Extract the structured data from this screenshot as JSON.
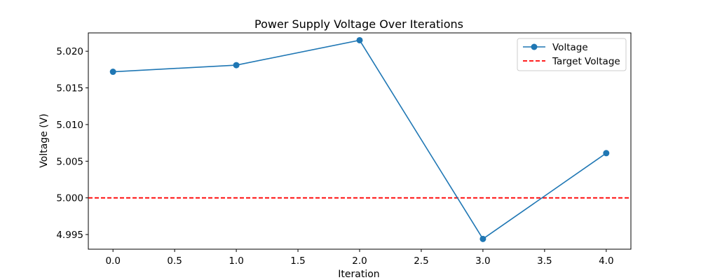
{
  "chart_data": {
    "type": "line",
    "title": "Power Supply Voltage Over Iterations",
    "xlabel": "Iteration",
    "ylabel": "Voltage (V)",
    "xlim": [
      -0.2,
      4.2
    ],
    "ylim": [
      4.993,
      5.0225
    ],
    "x_ticks": [
      0.0,
      0.5,
      1.0,
      1.5,
      2.0,
      2.5,
      3.0,
      3.5,
      4.0
    ],
    "x_tick_labels": [
      "0.0",
      "0.5",
      "1.0",
      "1.5",
      "2.0",
      "2.5",
      "3.0",
      "3.5",
      "4.0"
    ],
    "y_ticks": [
      4.995,
      5.0,
      5.005,
      5.01,
      5.015,
      5.02
    ],
    "y_tick_labels": [
      "4.995",
      "5.000",
      "5.005",
      "5.010",
      "5.015",
      "5.020"
    ],
    "grid": false,
    "legend_position": "top-right",
    "series": [
      {
        "name": "Voltage",
        "x": [
          0,
          1,
          2,
          3,
          4
        ],
        "values": [
          5.0172,
          5.0181,
          5.0215,
          4.9944,
          5.0061
        ],
        "color": "#1f77b4",
        "style": "solid",
        "marker": "circle"
      }
    ],
    "reference_lines": [
      {
        "name": "Target Voltage",
        "y": 5.0,
        "color": "#ff0000",
        "style": "dashed"
      }
    ]
  }
}
